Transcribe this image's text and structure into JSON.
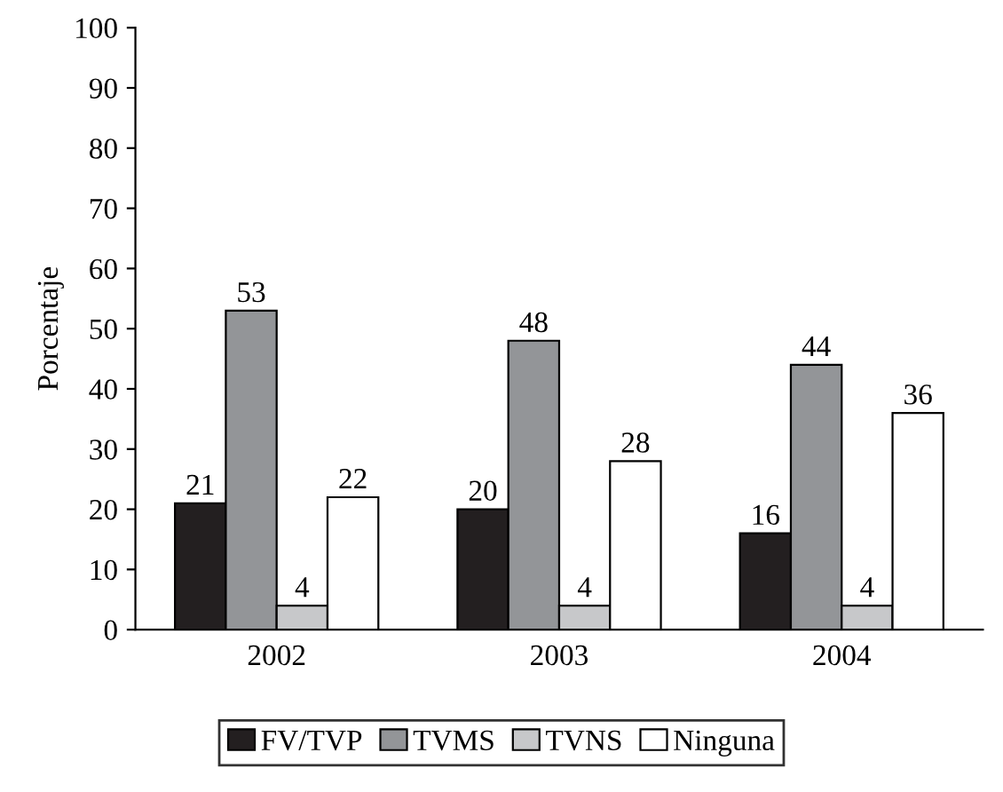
{
  "chart_data": {
    "type": "bar",
    "ylabel": "Porcentaje",
    "categories": [
      "2002",
      "2003",
      "2004"
    ],
    "series": [
      {
        "name": "FV/TVP",
        "color": "#231f20",
        "values": [
          21,
          20,
          16
        ]
      },
      {
        "name": "TVMS",
        "color": "#939598",
        "values": [
          53,
          48,
          44
        ]
      },
      {
        "name": "TVNS",
        "color": "#c7c8ca",
        "values": [
          4,
          4,
          4
        ]
      },
      {
        "name": "Ninguna",
        "color": "#ffffff",
        "values": [
          22,
          28,
          36
        ]
      }
    ],
    "ylim": [
      0,
      100
    ],
    "yticks": [
      0,
      10,
      20,
      30,
      40,
      50,
      60,
      70,
      80,
      90,
      100
    ],
    "data_labels": true,
    "grid": false,
    "legend": "bottom"
  }
}
